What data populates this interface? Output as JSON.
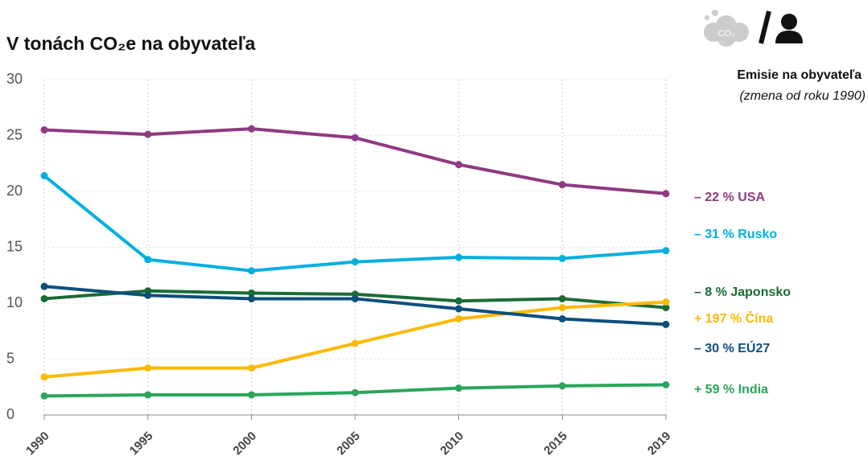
{
  "chart_data": {
    "type": "line",
    "title": "V tonách CO₂e na obyvateľa",
    "icon_text": "CO₂",
    "side_title": "Emisie na obyvateľa",
    "side_subtitle": "(zmena od roku 1990)",
    "categories": [
      "1990",
      "1995",
      "2000",
      "2005",
      "2010",
      "2015",
      "2019"
    ],
    "series": [
      {
        "name": "– 22 % USA",
        "color": "#8e3a80",
        "values": [
          25.5,
          25.1,
          25.6,
          24.8,
          22.4,
          20.6,
          19.8
        ]
      },
      {
        "name": "– 31 % Rusko",
        "color": "#00b0e0",
        "values": [
          21.4,
          13.9,
          12.9,
          13.7,
          14.1,
          14.0,
          14.7
        ]
      },
      {
        "name": "– 8 % Japonsko",
        "color": "#1a6b35",
        "values": [
          10.4,
          11.1,
          10.9,
          10.8,
          10.2,
          10.4,
          9.6
        ]
      },
      {
        "name": "+ 197 % Čína",
        "color": "#fbb900",
        "values": [
          3.4,
          4.2,
          4.2,
          6.4,
          8.6,
          9.6,
          10.1
        ]
      },
      {
        "name": "– 30 % EÚ27",
        "color": "#0d4f7c",
        "values": [
          11.5,
          10.7,
          10.4,
          10.4,
          9.5,
          8.6,
          8.1
        ]
      },
      {
        "name": "+ 59 % India",
        "color": "#2ba55d",
        "values": [
          1.7,
          1.8,
          1.8,
          2.0,
          2.4,
          2.6,
          2.7
        ]
      }
    ],
    "ylim": [
      0,
      30
    ],
    "yticks": [
      0,
      5,
      10,
      15,
      20,
      25,
      30
    ],
    "grid": true
  }
}
